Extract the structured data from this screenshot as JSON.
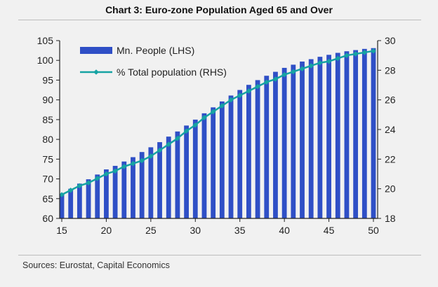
{
  "title": "Chart 3: Euro-zone Population Aged 65 and Over",
  "source": "Sources:  Eurostat, Capital Economics",
  "colors": {
    "bar": "#2f4fc6",
    "line": "#16a3a3",
    "background": "#f1f1f1"
  },
  "chart_data": {
    "type": "bar",
    "title": "Chart 3: Euro-zone Population Aged 65 and Over",
    "xlabel": "",
    "ylabel": "Mn. People",
    "y2label": "% Total population",
    "x": [
      15,
      16,
      17,
      18,
      19,
      20,
      21,
      22,
      23,
      24,
      25,
      26,
      27,
      28,
      29,
      30,
      31,
      32,
      33,
      34,
      35,
      36,
      37,
      38,
      39,
      40,
      41,
      42,
      43,
      44,
      45,
      46,
      47,
      48,
      49,
      50
    ],
    "x_ticks": [
      15,
      20,
      25,
      30,
      35,
      40,
      45,
      50
    ],
    "ylim": [
      60,
      105
    ],
    "y_ticks": [
      60,
      65,
      70,
      75,
      80,
      85,
      90,
      95,
      100,
      105
    ],
    "y2lim": [
      18,
      30
    ],
    "y2_ticks": [
      18,
      20,
      22,
      24,
      26,
      28,
      30
    ],
    "series": [
      {
        "name": "Mn. People (LHS)",
        "type": "bar",
        "axis": "left",
        "values": [
          66.2,
          67.5,
          68.8,
          69.9,
          71.1,
          72.4,
          73.3,
          74.4,
          75.5,
          76.8,
          78.0,
          79.3,
          80.7,
          82.0,
          83.5,
          85.0,
          86.6,
          88.1,
          89.6,
          91.1,
          92.5,
          93.8,
          95.0,
          96.1,
          97.1,
          98.1,
          98.9,
          99.7,
          100.3,
          100.9,
          101.4,
          101.9,
          102.3,
          102.6,
          102.9,
          103.1
        ]
      },
      {
        "name": "% Total population (RHS)",
        "type": "line",
        "axis": "right",
        "values": [
          19.6,
          19.9,
          20.2,
          20.4,
          20.7,
          21.0,
          21.2,
          21.5,
          21.7,
          21.9,
          22.2,
          22.6,
          23.0,
          23.4,
          23.9,
          24.3,
          24.8,
          25.2,
          25.6,
          26.0,
          26.3,
          26.6,
          26.9,
          27.2,
          27.4,
          27.7,
          27.9,
          28.1,
          28.3,
          28.5,
          28.6,
          28.8,
          29.0,
          29.1,
          29.2,
          29.3
        ]
      }
    ],
    "legend": [
      "Mn. People (LHS)",
      "% Total population (RHS)"
    ],
    "legend_position": "top-left",
    "grid": false
  }
}
